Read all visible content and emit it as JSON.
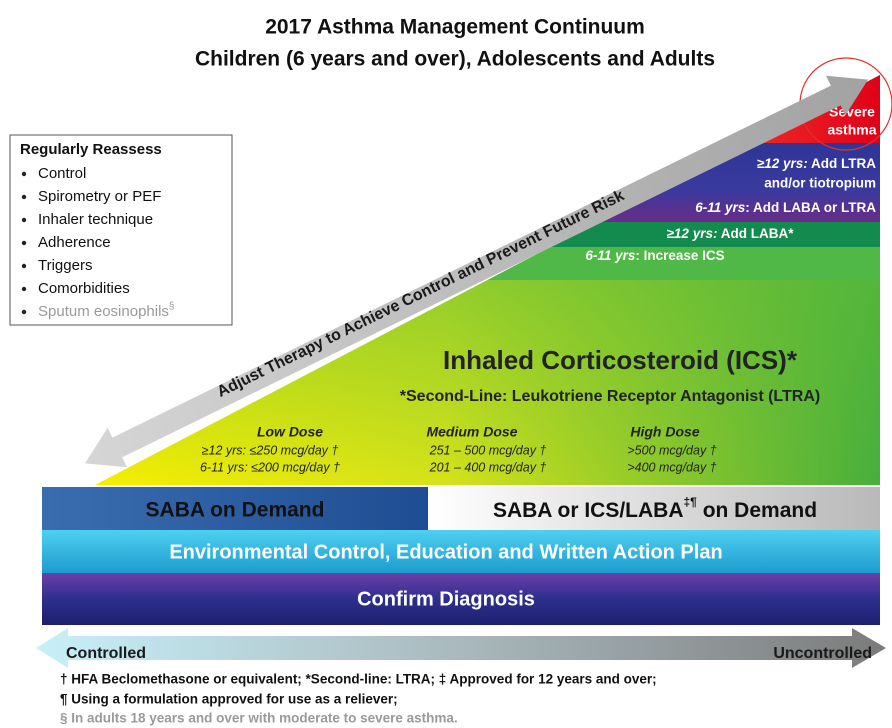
{
  "title": [
    "2017 Asthma Management Continuum",
    "Children (6 years and over), Adolescents and Adults"
  ],
  "reassess": {
    "heading": "Regularly Reassess",
    "items": [
      "Control",
      "Spirometry or PEF",
      "Inhaler technique",
      "Adherence",
      "Triggers",
      "Comorbidities"
    ],
    "last_item": {
      "text": "Sputum eosinophils",
      "mark": "§"
    }
  },
  "arrow_label": "Adjust Therapy to Achieve Control and Prevent Future Risk",
  "steps": {
    "severe": [
      "Severe",
      "asthma"
    ],
    "step4": [
      {
        "age": "≥12 yrs:",
        "text": " Add LTRA"
      },
      {
        "text": "and/or tiotropium"
      },
      {
        "age": "6-11 yrs",
        "text": ": Add LABA or LTRA"
      }
    ],
    "step3": [
      {
        "age": "≥12 yrs:",
        "text": " Add LABA*"
      },
      {
        "age": "6-11 yrs",
        "text": ": Increase ICS"
      }
    ]
  },
  "ics": {
    "title": "Inhaled Corticosteroid (ICS)*",
    "subtitle": "*Second-Line: Leukotriene Receptor Antagonist (LTRA)",
    "doses": [
      {
        "heading": "Low Dose",
        "lines": [
          "≥12 yrs: ≤250 mcg/day †",
          "6-11 yrs: ≤200 mcg/day †"
        ]
      },
      {
        "heading": "Medium Dose",
        "lines": [
          "251 – 500 mcg/day †",
          "201 – 400 mcg/day †"
        ]
      },
      {
        "heading": "High Dose",
        "lines": [
          ">500 mcg/day †",
          ">400 mcg/day †"
        ]
      }
    ]
  },
  "bars": {
    "saba_left": "SABA on Demand",
    "saba_right": {
      "text": "SABA or ICS/LABA",
      "mark": "‡¶",
      "after": " on Demand"
    },
    "environment": "Environmental Control, Education and Written Action Plan",
    "diagnosis": "Confirm Diagnosis"
  },
  "control_scale": {
    "left": "Controlled",
    "right": "Uncontrolled"
  },
  "footnotes": [
    "† HFA Beclomethasone or equivalent; *Second-line: LTRA; ‡ Approved for 12 years and over;",
    "¶ Using a formulation approved for use as a reliever;",
    "§ In adults 18 years and over with moderate to severe asthma."
  ]
}
